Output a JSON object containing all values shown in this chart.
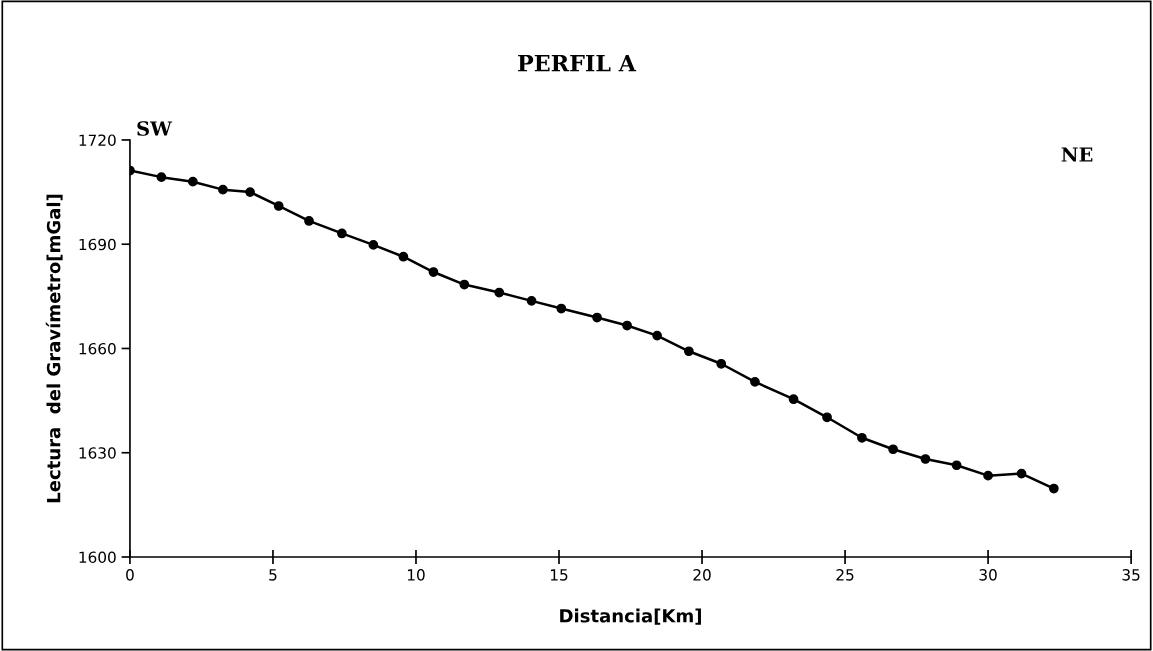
{
  "chart_data": {
    "type": "line",
    "title": "PERFIL A",
    "xlabel": "Distancia[Km]",
    "ylabel": "Lectura  del Gravímetro[mGal]",
    "annotations": [
      "SW",
      "NE"
    ],
    "series": [
      {
        "color": "#000000",
        "x": [
          0,
          1.1,
          2.2,
          3.25,
          4.2,
          5.2,
          6.26,
          7.41,
          8.51,
          9.56,
          10.61,
          11.69,
          12.91,
          14.04,
          15.08,
          16.33,
          17.38,
          18.43,
          19.54,
          20.67,
          21.85,
          23.2,
          24.37,
          25.59,
          26.68,
          27.81,
          28.9,
          30.0,
          31.17,
          32.3
        ],
        "values": [
          1711.2,
          1709.3,
          1708.0,
          1705.7,
          1705.0,
          1701.0,
          1696.7,
          1693.1,
          1689.8,
          1686.4,
          1682.0,
          1678.4,
          1676.1,
          1673.7,
          1671.5,
          1668.9,
          1666.6,
          1663.7,
          1659.2,
          1655.6,
          1650.4,
          1645.4,
          1640.2,
          1634.3,
          1631.0,
          1628.2,
          1626.4,
          1623.4,
          1624.0,
          1619.7
        ]
      }
    ],
    "xlim": [
      0,
      35
    ],
    "xticks": [
      0,
      5,
      10,
      15,
      20,
      25,
      30,
      35
    ],
    "ylim": [
      1600,
      1720
    ],
    "yticks": [
      1600,
      1630,
      1660,
      1690,
      1720
    ],
    "grid": false,
    "legend": false,
    "marker": "circle",
    "line_style": "solid"
  }
}
